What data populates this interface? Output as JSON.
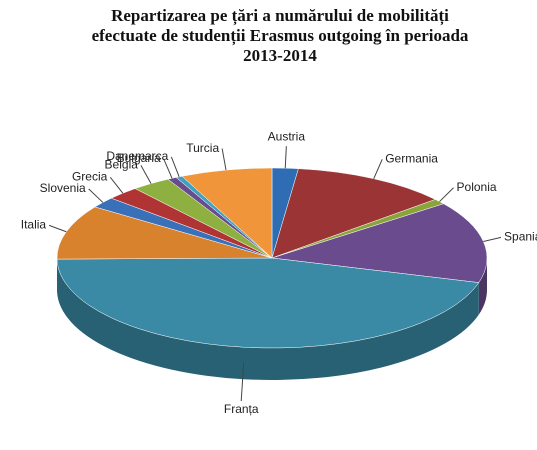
{
  "chart_data": {
    "type": "pie3d",
    "title": "Repartizarea pe țări a numărului de mobilități efectuate de studenții Erasmus outgoing în perioada 2013-2014",
    "categories": [
      "Austria",
      "Germania",
      "Polonia",
      "Spania",
      "Franța",
      "Italia",
      "Slovenia",
      "Grecia",
      "Belgia",
      "Bulgaria",
      "Danemarca",
      "Turcia"
    ],
    "values": [
      2,
      12,
      1,
      15,
      46.3,
      10,
      2,
      2.5,
      3,
      0.7,
      0.5,
      7
    ],
    "colors": [
      "#2e6db4",
      "#9b3535",
      "#8aa33a",
      "#6a4c8e",
      "#3a8aa6",
      "#d8822e",
      "#3a70b8",
      "#b03434",
      "#8db040",
      "#6a4c8e",
      "#40a0c0",
      "#f0953a"
    ]
  }
}
